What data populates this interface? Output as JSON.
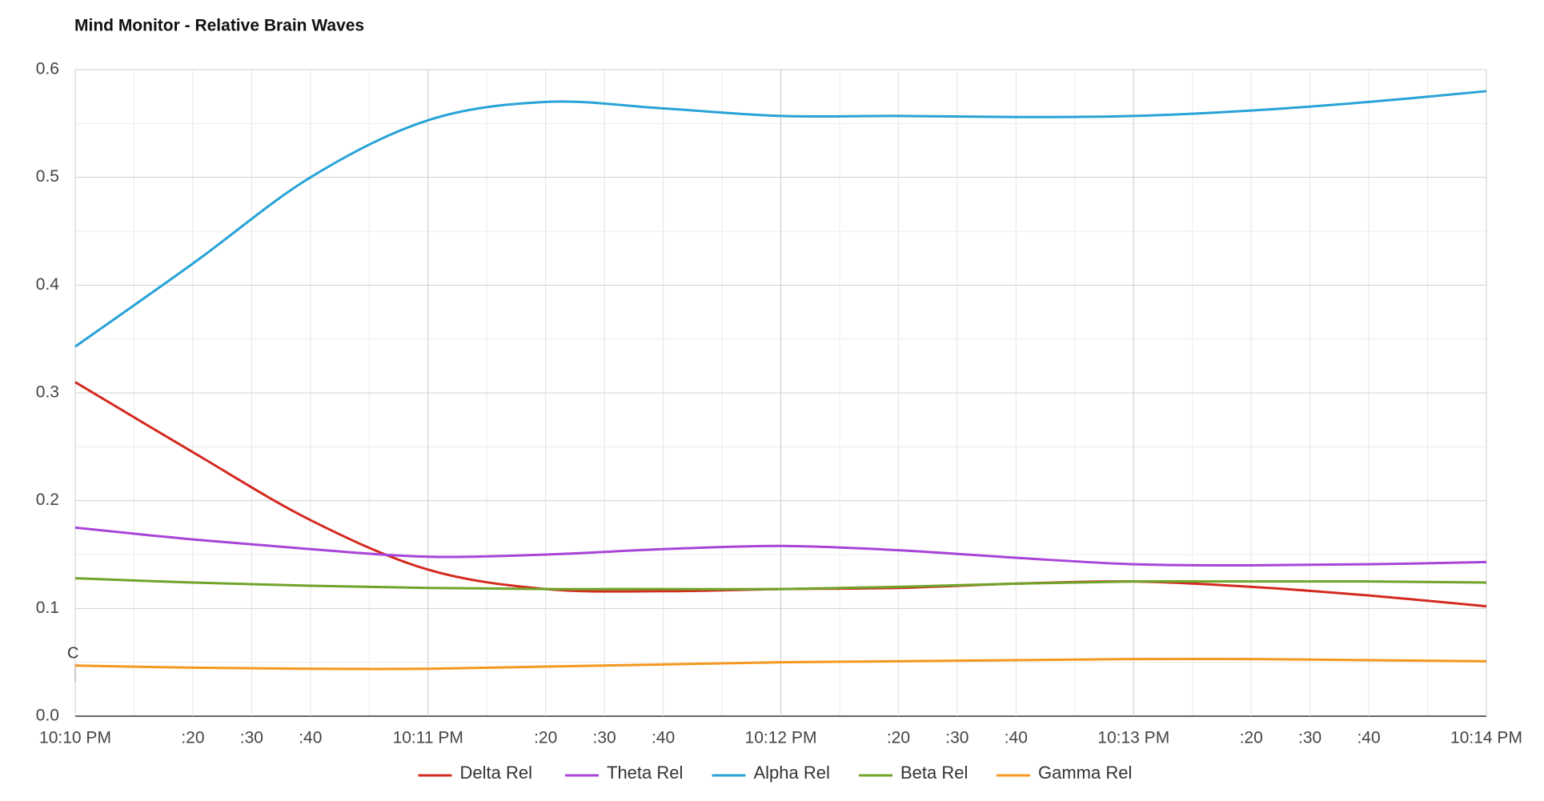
{
  "chart_data": {
    "type": "line",
    "title": "Mind Monitor -  Relative Brain Waves",
    "annotation": "C",
    "x": [
      0,
      20,
      40,
      60,
      80,
      100,
      120,
      140,
      160,
      180,
      200,
      220,
      240
    ],
    "xlim": [
      0,
      240
    ],
    "xticks": [
      {
        "value": 0,
        "label": "10:10 PM"
      },
      {
        "value": 20,
        "label": ":20"
      },
      {
        "value": 30,
        "label": ":30"
      },
      {
        "value": 40,
        "label": ":40"
      },
      {
        "value": 60,
        "label": "10:11 PM"
      },
      {
        "value": 80,
        "label": ":20"
      },
      {
        "value": 90,
        "label": ":30"
      },
      {
        "value": 100,
        "label": ":40"
      },
      {
        "value": 120,
        "label": "10:12 PM"
      },
      {
        "value": 140,
        "label": ":20"
      },
      {
        "value": 150,
        "label": ":30"
      },
      {
        "value": 160,
        "label": ":40"
      },
      {
        "value": 180,
        "label": "10:13 PM"
      },
      {
        "value": 200,
        "label": ":20"
      },
      {
        "value": 210,
        "label": ":30"
      },
      {
        "value": 220,
        "label": ":40"
      },
      {
        "value": 240,
        "label": "10:14 PM"
      }
    ],
    "xminor_ticks": [
      10,
      50,
      70,
      110,
      130,
      170,
      190,
      230
    ],
    "ylim": [
      0,
      0.6
    ],
    "yticks": [
      {
        "value": 0,
        "label": "0.0"
      },
      0.1,
      0.2,
      0.3,
      0.4,
      0.5,
      0.6
    ],
    "yminor_ticks": [
      0.05,
      0.15,
      0.25,
      0.35,
      0.45,
      0.55
    ],
    "grid": true,
    "legend": "bottom",
    "series": [
      {
        "name": "Delta Rel",
        "color": "#d42a20",
        "values": [
          0.31,
          0.245,
          0.182,
          0.136,
          0.118,
          0.116,
          0.118,
          0.119,
          0.123,
          0.125,
          0.12,
          0.112,
          0.102
        ]
      },
      {
        "name": "Theta Rel",
        "color": "#a844d8",
        "values": [
          0.175,
          0.164,
          0.155,
          0.148,
          0.15,
          0.155,
          0.158,
          0.154,
          0.147,
          0.141,
          0.14,
          0.141,
          0.143
        ]
      },
      {
        "name": "Alpha Rel",
        "color": "#27a3d6",
        "values": [
          0.343,
          0.42,
          0.5,
          0.553,
          0.57,
          0.564,
          0.557,
          0.557,
          0.556,
          0.557,
          0.562,
          0.57,
          0.58
        ]
      },
      {
        "name": "Beta Rel",
        "color": "#6fa42a",
        "values": [
          0.128,
          0.124,
          0.121,
          0.119,
          0.118,
          0.118,
          0.118,
          0.12,
          0.123,
          0.125,
          0.125,
          0.125,
          0.124
        ]
      },
      {
        "name": "Gamma Rel",
        "color": "#f4981f",
        "values": [
          0.047,
          0.045,
          0.044,
          0.044,
          0.046,
          0.048,
          0.05,
          0.051,
          0.052,
          0.053,
          0.053,
          0.052,
          0.051
        ]
      }
    ]
  }
}
